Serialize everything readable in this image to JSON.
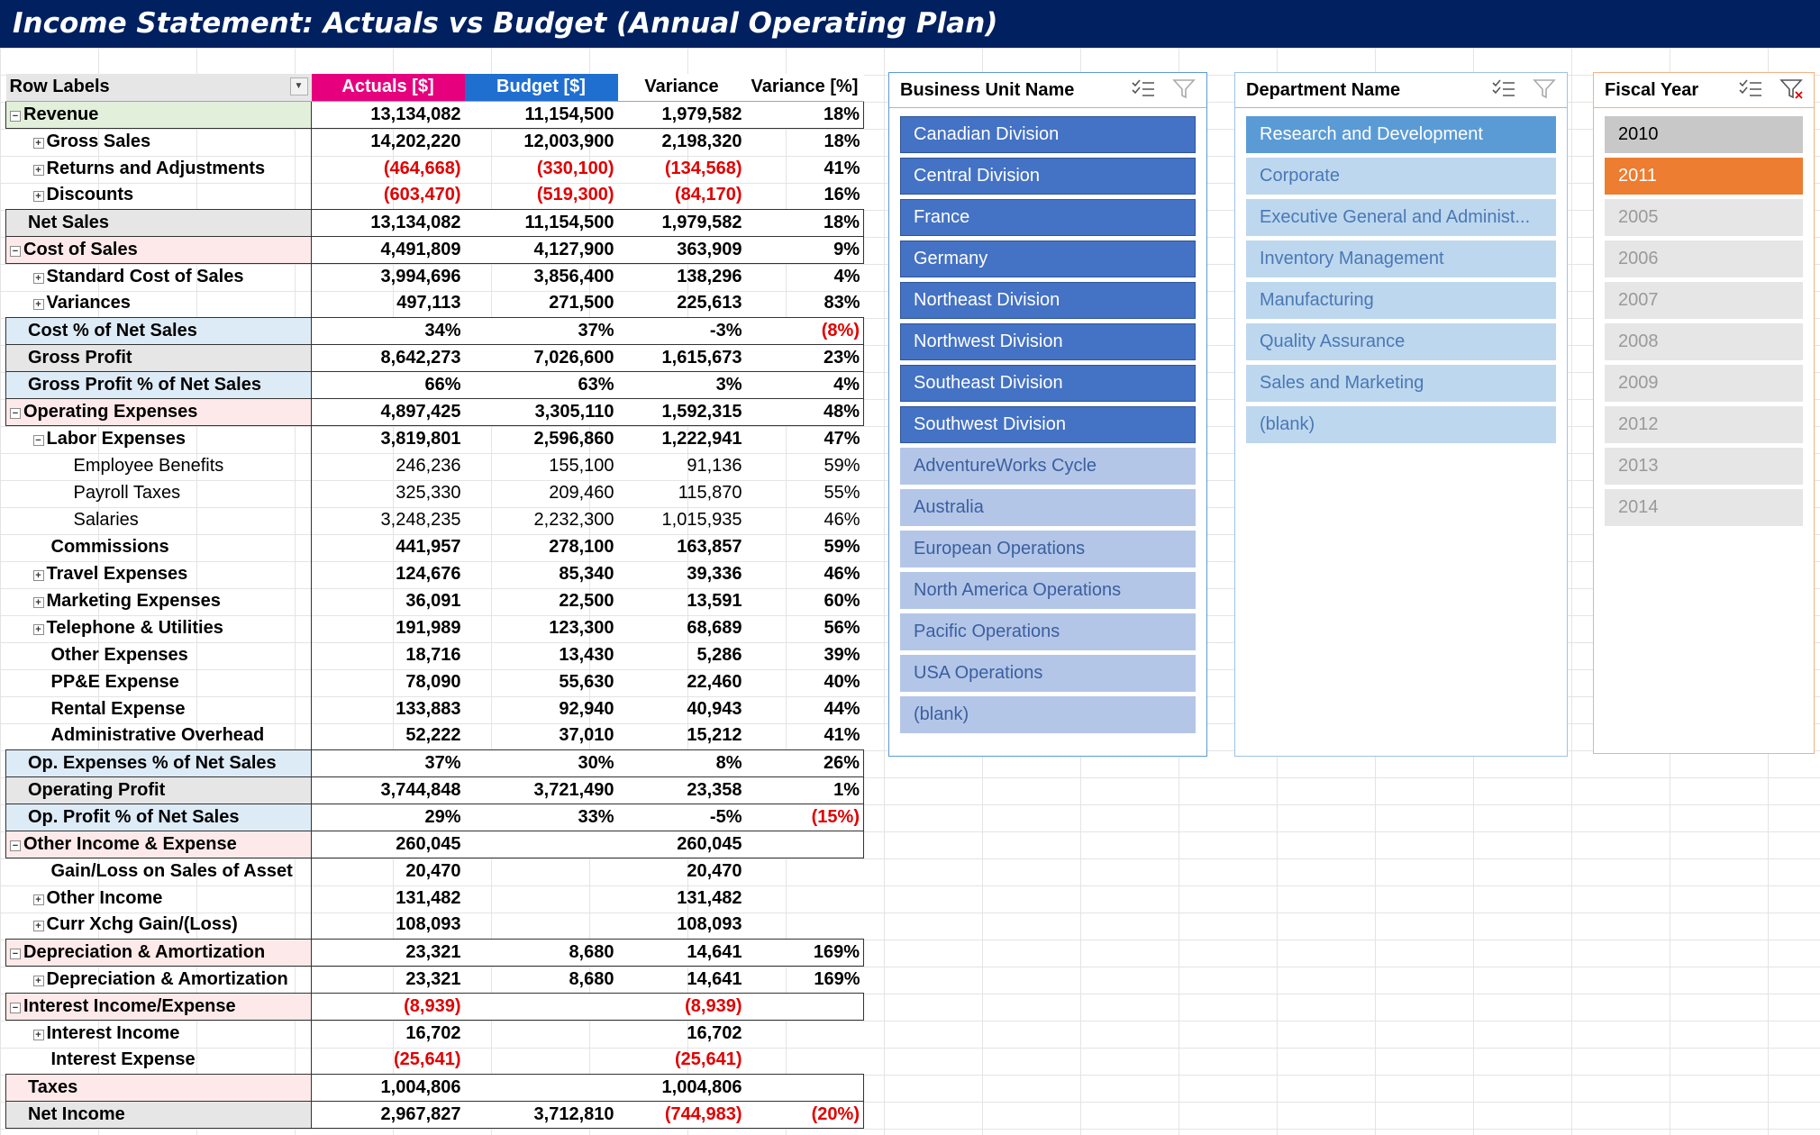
{
  "title": "Income Statement: Actuals vs Budget (Annual Operating Plan)",
  "pivot": {
    "headers": [
      "Row Labels",
      "Actuals [$]",
      "Budget [$]",
      "Variance",
      "Variance [%]"
    ],
    "rows": [
      {
        "label": "Revenue",
        "exp": "−",
        "level": 0,
        "band": "rev",
        "act": "13,134,082",
        "bud": "11,154,500",
        "var": "1,979,582",
        "pct": "18%"
      },
      {
        "label": "Gross Sales",
        "exp": "+",
        "level": 1,
        "band": "",
        "act": "14,202,220",
        "bud": "12,003,900",
        "var": "2,198,320",
        "pct": "18%"
      },
      {
        "label": "Returns and Adjustments",
        "exp": "+",
        "level": 1,
        "band": "",
        "act": "(464,668)",
        "bud": "(330,100)",
        "var": "(134,568)",
        "pct": "41%"
      },
      {
        "label": "Discounts",
        "exp": "+",
        "level": 1,
        "band": "",
        "act": "(603,470)",
        "bud": "(519,300)",
        "var": "(84,170)",
        "pct": "16%"
      },
      {
        "label": "Net Sales",
        "exp": "",
        "level": 0,
        "band": "greyband",
        "act": "13,134,082",
        "bud": "11,154,500",
        "var": "1,979,582",
        "pct": "18%"
      },
      {
        "label": "Cost of Sales",
        "exp": "−",
        "level": 0,
        "band": "pinkband",
        "act": "4,491,809",
        "bud": "4,127,900",
        "var": "363,909",
        "pct": "9%"
      },
      {
        "label": "Standard Cost of Sales",
        "exp": "+",
        "level": 1,
        "band": "",
        "act": "3,994,696",
        "bud": "3,856,400",
        "var": "138,296",
        "pct": "4%"
      },
      {
        "label": "Variances",
        "exp": "+",
        "level": 1,
        "band": "",
        "act": "497,113",
        "bud": "271,500",
        "var": "225,613",
        "pct": "83%"
      },
      {
        "label": "Cost % of Net Sales",
        "exp": "",
        "level": 0,
        "band": "blueband",
        "act": "34%",
        "bud": "37%",
        "var": "-3%",
        "pct": "(8%)"
      },
      {
        "label": "Gross Profit",
        "exp": "",
        "level": 0,
        "band": "greyband",
        "act": "8,642,273",
        "bud": "7,026,600",
        "var": "1,615,673",
        "pct": "23%"
      },
      {
        "label": "Gross Profit % of Net Sales",
        "exp": "",
        "level": 0,
        "band": "blueband",
        "act": "66%",
        "bud": "63%",
        "var": "3%",
        "pct": "4%"
      },
      {
        "label": "Operating Expenses",
        "exp": "−",
        "level": 0,
        "band": "pinkband",
        "act": "4,897,425",
        "bud": "3,305,110",
        "var": "1,592,315",
        "pct": "48%"
      },
      {
        "label": "Labor Expenses",
        "exp": "−",
        "level": 1,
        "band": "",
        "act": "3,819,801",
        "bud": "2,596,860",
        "var": "1,222,941",
        "pct": "47%"
      },
      {
        "label": "Employee Benefits",
        "exp": "",
        "level": 2,
        "band": "",
        "act": "246,236",
        "bud": "155,100",
        "var": "91,136",
        "pct": "59%"
      },
      {
        "label": "Payroll Taxes",
        "exp": "",
        "level": 2,
        "band": "",
        "act": "325,330",
        "bud": "209,460",
        "var": "115,870",
        "pct": "55%"
      },
      {
        "label": "Salaries",
        "exp": "",
        "level": 2,
        "band": "",
        "act": "3,248,235",
        "bud": "2,232,300",
        "var": "1,015,935",
        "pct": "46%"
      },
      {
        "label": "Commissions",
        "exp": "",
        "level": 1,
        "band": "",
        "act": "441,957",
        "bud": "278,100",
        "var": "163,857",
        "pct": "59%"
      },
      {
        "label": "Travel Expenses",
        "exp": "+",
        "level": 1,
        "band": "",
        "act": "124,676",
        "bud": "85,340",
        "var": "39,336",
        "pct": "46%"
      },
      {
        "label": "Marketing Expenses",
        "exp": "+",
        "level": 1,
        "band": "",
        "act": "36,091",
        "bud": "22,500",
        "var": "13,591",
        "pct": "60%"
      },
      {
        "label": "Telephone & Utilities",
        "exp": "+",
        "level": 1,
        "band": "",
        "act": "191,989",
        "bud": "123,300",
        "var": "68,689",
        "pct": "56%"
      },
      {
        "label": "Other Expenses",
        "exp": "",
        "level": 1,
        "band": "",
        "act": "18,716",
        "bud": "13,430",
        "var": "5,286",
        "pct": "39%"
      },
      {
        "label": "PP&E Expense",
        "exp": "",
        "level": 1,
        "band": "",
        "act": "78,090",
        "bud": "55,630",
        "var": "22,460",
        "pct": "40%"
      },
      {
        "label": "Rental Expense",
        "exp": "",
        "level": 1,
        "band": "",
        "act": "133,883",
        "bud": "92,940",
        "var": "40,943",
        "pct": "44%"
      },
      {
        "label": "Administrative Overhead",
        "exp": "",
        "level": 1,
        "band": "",
        "act": "52,222",
        "bud": "37,010",
        "var": "15,212",
        "pct": "41%"
      },
      {
        "label": "Op. Expenses % of Net Sales",
        "exp": "",
        "level": 0,
        "band": "blueband",
        "act": "37%",
        "bud": "30%",
        "var": "8%",
        "pct": "26%"
      },
      {
        "label": "Operating Profit",
        "exp": "",
        "level": 0,
        "band": "greyband",
        "act": "3,744,848",
        "bud": "3,721,490",
        "var": "23,358",
        "pct": "1%"
      },
      {
        "label": "Op. Profit % of Net Sales",
        "exp": "",
        "level": 0,
        "band": "blueband",
        "act": "29%",
        "bud": "33%",
        "var": "-5%",
        "pct": "(15%)"
      },
      {
        "label": "Other Income & Expense",
        "exp": "−",
        "level": 0,
        "band": "pinkband",
        "act": "260,045",
        "bud": "",
        "var": "260,045",
        "pct": ""
      },
      {
        "label": "Gain/Loss on Sales of Asset",
        "exp": "",
        "level": 1,
        "band": "",
        "act": "20,470",
        "bud": "",
        "var": "20,470",
        "pct": ""
      },
      {
        "label": "Other Income",
        "exp": "+",
        "level": 1,
        "band": "",
        "act": "131,482",
        "bud": "",
        "var": "131,482",
        "pct": ""
      },
      {
        "label": "Curr Xchg Gain/(Loss)",
        "exp": "+",
        "level": 1,
        "band": "",
        "act": "108,093",
        "bud": "",
        "var": "108,093",
        "pct": ""
      },
      {
        "label": "Depreciation & Amortization",
        "exp": "−",
        "level": 0,
        "band": "pinkband",
        "act": "23,321",
        "bud": "8,680",
        "var": "14,641",
        "pct": "169%"
      },
      {
        "label": "Depreciation & Amortization",
        "exp": "+",
        "level": 1,
        "band": "",
        "act": "23,321",
        "bud": "8,680",
        "var": "14,641",
        "pct": "169%"
      },
      {
        "label": "Interest Income/Expense",
        "exp": "−",
        "level": 0,
        "band": "pinkband",
        "act": "(8,939)",
        "bud": "",
        "var": "(8,939)",
        "pct": ""
      },
      {
        "label": "Interest Income",
        "exp": "+",
        "level": 1,
        "band": "",
        "act": "16,702",
        "bud": "",
        "var": "16,702",
        "pct": ""
      },
      {
        "label": "Interest Expense",
        "exp": "",
        "level": 1,
        "band": "",
        "act": "(25,641)",
        "bud": "",
        "var": "(25,641)",
        "pct": ""
      },
      {
        "label": "Taxes",
        "exp": "",
        "level": 0,
        "band": "pinkband",
        "act": "1,004,806",
        "bud": "",
        "var": "1,004,806",
        "pct": ""
      },
      {
        "label": "Net Income",
        "exp": "",
        "level": 0,
        "band": "greyband",
        "act": "2,967,827",
        "bud": "3,712,810",
        "var": "(744,983)",
        "pct": "(20%)"
      }
    ]
  },
  "slicers": {
    "business_unit": {
      "title": "Business Unit Name",
      "items": [
        {
          "label": "Canadian Division",
          "state": "on"
        },
        {
          "label": "Central Division",
          "state": "on"
        },
        {
          "label": "France",
          "state": "on"
        },
        {
          "label": "Germany",
          "state": "on"
        },
        {
          "label": "Northeast Division",
          "state": "on"
        },
        {
          "label": "Northwest Division",
          "state": "on"
        },
        {
          "label": "Southeast Division",
          "state": "on"
        },
        {
          "label": "Southwest Division",
          "state": "on"
        },
        {
          "label": "AdventureWorks Cycle",
          "state": "off"
        },
        {
          "label": "Australia",
          "state": "off"
        },
        {
          "label": "European Operations",
          "state": "off"
        },
        {
          "label": "North America Operations",
          "state": "off"
        },
        {
          "label": "Pacific Operations",
          "state": "off"
        },
        {
          "label": "USA Operations",
          "state": "off"
        },
        {
          "label": "(blank)",
          "state": "off"
        }
      ]
    },
    "department": {
      "title": "Department Name",
      "items": [
        {
          "label": "Research and Development",
          "state": "on"
        },
        {
          "label": "Corporate",
          "state": "off"
        },
        {
          "label": "Executive General and Administ...",
          "state": "off"
        },
        {
          "label": "Inventory Management",
          "state": "off"
        },
        {
          "label": "Manufacturing",
          "state": "off"
        },
        {
          "label": "Quality Assurance",
          "state": "off"
        },
        {
          "label": "Sales and Marketing",
          "state": "off"
        },
        {
          "label": "(blank)",
          "state": "off"
        }
      ]
    },
    "fiscal_year": {
      "title": "Fiscal Year",
      "items": [
        {
          "label": "2010",
          "state": "hi"
        },
        {
          "label": "2011",
          "state": "on"
        },
        {
          "label": "2005",
          "state": "off"
        },
        {
          "label": "2006",
          "state": "off"
        },
        {
          "label": "2007",
          "state": "off"
        },
        {
          "label": "2008",
          "state": "off"
        },
        {
          "label": "2009",
          "state": "off"
        },
        {
          "label": "2012",
          "state": "off"
        },
        {
          "label": "2013",
          "state": "off"
        },
        {
          "label": "2014",
          "state": "off"
        }
      ]
    }
  },
  "colors": {
    "title_bg": "#002060",
    "actuals_header": "#e6007e",
    "budget_header": "#1f6fd1",
    "negative": "#e00000",
    "bu_selected": "#4472c4",
    "dept_selected": "#5b9bd5",
    "fy_selected": "#ed7d31"
  }
}
